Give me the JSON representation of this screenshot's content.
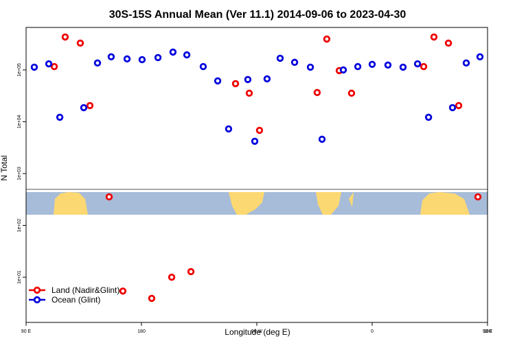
{
  "chart_data": {
    "type": "scatter",
    "title": "30S-15S Annual Mean (Ver 11.1)   2014-09-06 to 2023-04-30",
    "x_label": "Longitude (deg E)",
    "y_label": "N Total",
    "log_y": true,
    "xlim": [
      90,
      450
    ],
    "xticks": [
      {
        "value": 90,
        "label": "90 E"
      },
      180,
      {
        "value": 270,
        "label": "90 W"
      },
      {
        "value": 360,
        "label": "0"
      },
      {
        "value": 450,
        "label": "90 E"
      },
      {
        "value": 540,
        "label": "180"
      }
    ],
    "ylim": [
      1.34,
      660000
    ],
    "yticks": [
      {
        "value": 10,
        "label": "1e+01"
      },
      {
        "value": 100,
        "label": "1e+02"
      },
      {
        "value": 1000,
        "label": "1e+03"
      },
      {
        "value": 10000,
        "label": "1e+04"
      },
      {
        "value": 100000,
        "label": "1e+05"
      }
    ],
    "legend": "lower left",
    "series": [
      {
        "name": "Land (Nadir&Glint)",
        "color": "#ee0000",
        "x": [
          112,
          120.5,
          132.3,
          139.8,
          154.8,
          165.5,
          188,
          203.6,
          218.6,
          253.4,
          264.1,
          272.1,
          317.1,
          324.6,
          334.3,
          343.9,
          400.2,
          408.2,
          419.5,
          427.5,
          442.5
        ],
        "values": [
          116000,
          432000,
          329000,
          20500,
          355,
          5.4,
          3.9,
          10,
          12.8,
          54300,
          35500,
          6820,
          36600,
          394000,
          97000,
          35500,
          116000,
          432000,
          329000,
          20500,
          355
        ]
      },
      {
        "name": "Ocean (Glint)",
        "color": "#0000dd",
        "x": [
          96.4,
          107.7,
          116.3,
          135,
          145.7,
          156.4,
          168.8,
          180.5,
          192.9,
          204.6,
          215.4,
          228.2,
          239.5,
          248,
          263,
          268.4,
          278,
          288.2,
          299.5,
          311.8,
          320.9,
          337.5,
          348.8,
          360,
          372.3,
          384.1,
          395.4,
          404,
          422.7,
          433.4,
          444.1
        ],
        "values": [
          113000,
          131000,
          12200,
          18700,
          136000,
          179000,
          163000,
          158000,
          173000,
          221000,
          195000,
          116000,
          61400,
          7260,
          65300,
          4200,
          67300,
          168000,
          140000,
          113000,
          4590,
          100000,
          116000,
          128000,
          124000,
          113000,
          131000,
          12200,
          18700,
          136000,
          179000
        ]
      }
    ]
  }
}
